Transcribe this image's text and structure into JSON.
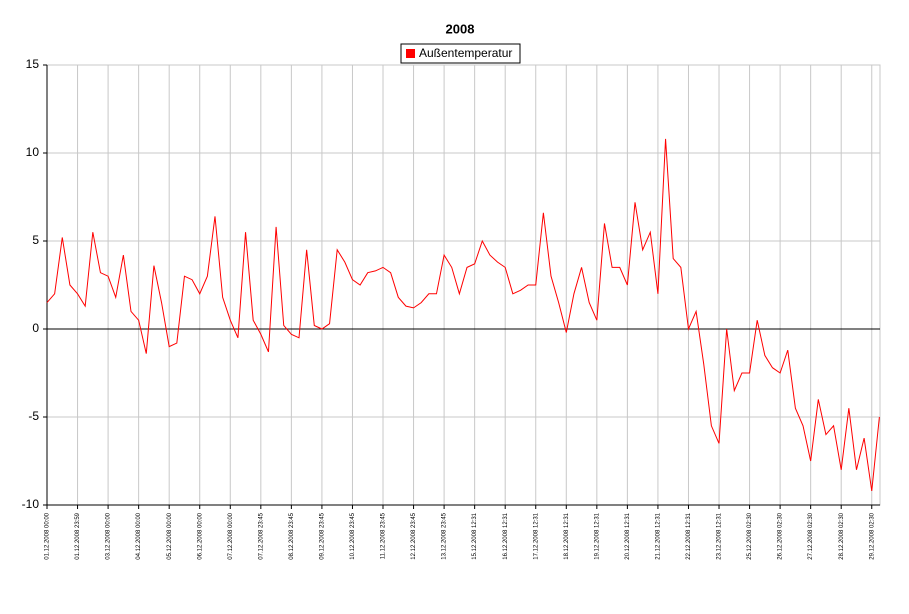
{
  "chart_data": {
    "type": "line",
    "title": "2008",
    "x": [
      0,
      0.25,
      0.5,
      0.75,
      1,
      1.25,
      1.5,
      1.75,
      2,
      2.25,
      2.5,
      2.75,
      3,
      3.25,
      3.5,
      3.75,
      4,
      4.25,
      4.5,
      4.75,
      5,
      5.25,
      5.5,
      5.75,
      6,
      6.25,
      6.5,
      6.75,
      7,
      7.25,
      7.5,
      7.75,
      8,
      8.25,
      8.5,
      8.75,
      9,
      9.25,
      9.5,
      9.75,
      10,
      10.25,
      10.5,
      10.75,
      11,
      11.25,
      11.5,
      11.75,
      12,
      12.25,
      12.5,
      12.75,
      13,
      13.25,
      13.5,
      13.75,
      14,
      14.25,
      14.5,
      14.75,
      15,
      15.25,
      15.5,
      15.75,
      16,
      16.25,
      16.5,
      16.75,
      17,
      17.25,
      17.5,
      17.75,
      18,
      18.25,
      18.5,
      18.75,
      19,
      19.25,
      19.5,
      19.75,
      20,
      20.25,
      20.5,
      20.75,
      21,
      21.25,
      21.5,
      21.75,
      22,
      22.25,
      22.5,
      22.75,
      23,
      23.25,
      23.5,
      23.75,
      24,
      24.25,
      24.5,
      24.75,
      25,
      25.25,
      25.5,
      25.75,
      26,
      26.25,
      26.5,
      26.75,
      27,
      27.25
    ],
    "series": [
      {
        "name": "Außentemperatur",
        "color": "#ff0000",
        "values": [
          1.5,
          2.0,
          5.2,
          2.5,
          2.0,
          1.3,
          5.5,
          3.2,
          3.0,
          1.8,
          4.2,
          1.0,
          0.5,
          -1.4,
          3.6,
          1.5,
          -1.0,
          -0.8,
          3.0,
          2.8,
          2.0,
          3.0,
          6.4,
          1.8,
          0.5,
          -0.5,
          5.5,
          0.5,
          -0.3,
          -1.3,
          5.8,
          0.2,
          -0.3,
          -0.5,
          4.5,
          0.2,
          0,
          0.3,
          4.5,
          3.8,
          2.8,
          2.5,
          3.2,
          3.3,
          3.5,
          3.2,
          1.8,
          1.3,
          1.2,
          1.5,
          2.0,
          2.0,
          4.2,
          3.5,
          2.0,
          3.5,
          3.7,
          5.0,
          4.2,
          3.8,
          3.5,
          2.0,
          2.2,
          2.5,
          2.5,
          6.6,
          3.0,
          1.5,
          -0.2,
          2.0,
          3.5,
          1.5,
          0.5,
          6.0,
          3.5,
          3.5,
          2.5,
          7.2,
          4.5,
          5.5,
          2.0,
          10.8,
          4.0,
          3.5,
          0,
          1.0,
          -2.0,
          -5.5,
          -6.5,
          0,
          -3.5,
          -2.5,
          -2.5,
          0.5,
          -1.5,
          -2.2,
          -2.5,
          -1.2,
          -4.5,
          -5.5,
          -7.5,
          -4.0,
          -6.0,
          -5.5,
          -8.0,
          -4.5,
          -8.0,
          -6.2,
          -9.2,
          -5.0
        ]
      }
    ],
    "xlim": [
      0,
      27.27
    ],
    "xticks": [
      {
        "value": 0,
        "label": "01.12.2008 00:00"
      },
      {
        "value": 1,
        "label": "01.12.2008 23:59"
      },
      {
        "value": 2,
        "label": "03.12.2008 00:00"
      },
      {
        "value": 3,
        "label": "04.12.2008 00:00"
      },
      {
        "value": 4,
        "label": "05.12.2008 00:00"
      },
      {
        "value": 5,
        "label": "06.12.2008 00:00"
      },
      {
        "value": 6,
        "label": "07.12.2008 00:00"
      },
      {
        "value": 7,
        "label": "07.12.2008 23:45"
      },
      {
        "value": 8,
        "label": "08.12.2008 23:45"
      },
      {
        "value": 9,
        "label": "09.12.2008 23:45"
      },
      {
        "value": 10,
        "label": "10.12.2008 23:45"
      },
      {
        "value": 11,
        "label": "11.12.2008 23:45"
      },
      {
        "value": 12,
        "label": "12.12.2008 23:45"
      },
      {
        "value": 13,
        "label": "13.12.2008 23:45"
      },
      {
        "value": 14,
        "label": "15.12.2008 12:31"
      },
      {
        "value": 15,
        "label": "16.12.2008 12:31"
      },
      {
        "value": 16,
        "label": "17.12.2008 12:31"
      },
      {
        "value": 17,
        "label": "18.12.2008 12:31"
      },
      {
        "value": 18,
        "label": "19.12.2008 12:31"
      },
      {
        "value": 19,
        "label": "20.12.2008 12:31"
      },
      {
        "value": 20,
        "label": "21.12.2008 12:31"
      },
      {
        "value": 21,
        "label": "22.12.2008 12:31"
      },
      {
        "value": 22,
        "label": "23.12.2008 12:31"
      },
      {
        "value": 23,
        "label": "25.12.2008 02:30"
      },
      {
        "value": 24,
        "label": "26.12.2008 02:30"
      },
      {
        "value": 25,
        "label": "27.12.2008 02:30"
      },
      {
        "value": 26,
        "label": "28.12.2008 02:30"
      },
      {
        "value": 27,
        "label": "29.12.2008 02:30"
      }
    ],
    "ylim": [
      -10,
      15
    ],
    "yticks": [
      -10,
      -5,
      0,
      5,
      10,
      15
    ],
    "grid": true
  }
}
